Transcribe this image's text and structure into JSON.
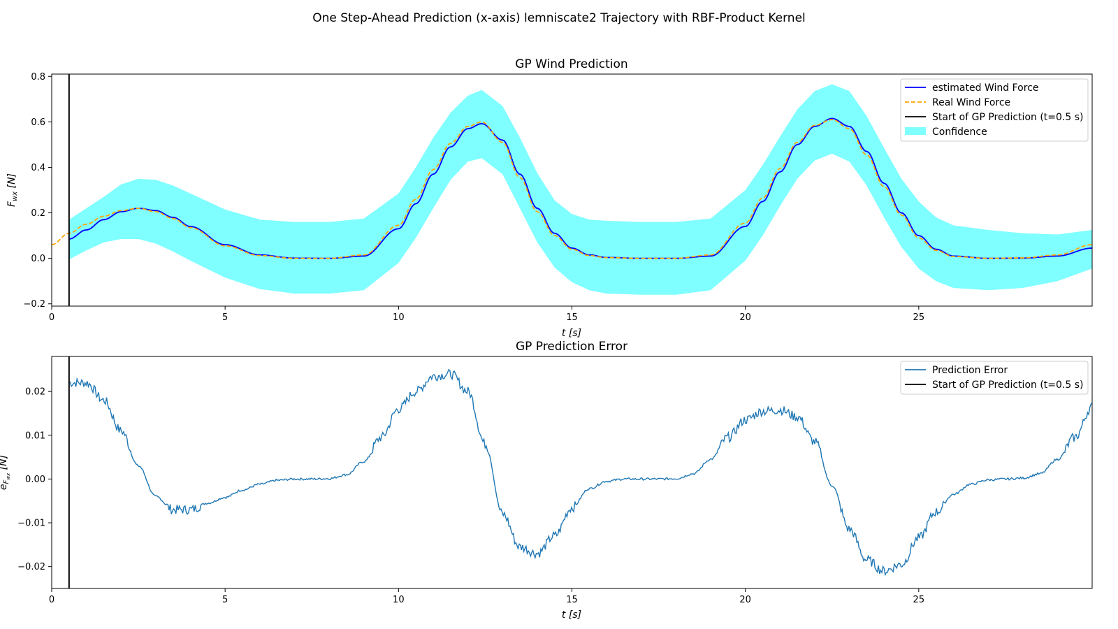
{
  "figure": {
    "title": "One Step-Ahead Prediction (x-axis) lemniscate2 Trajectory with RBF-Product Kernel"
  },
  "chart_data": [
    {
      "type": "line",
      "title": "GP Wind Prediction",
      "xlabel": "t [s]",
      "ylabel_main": "F",
      "ylabel_sub": "wx",
      "ylabel_unit": "[N]",
      "xlim": [
        0,
        30
      ],
      "ylim": [
        -0.21,
        0.81
      ],
      "xticks": [
        0,
        5,
        10,
        15,
        20,
        25
      ],
      "xtick_labels": [
        "0",
        "5",
        "10",
        "15",
        "20",
        "25"
      ],
      "yticks": [
        -0.2,
        0.0,
        0.2,
        0.4,
        0.6,
        0.8
      ],
      "ytick_labels": [
        "−0.2",
        "0.0",
        "0.2",
        "0.4",
        "0.6",
        "0.8"
      ],
      "grid": false,
      "legend_position": "top-right",
      "vline": {
        "x": 0.5,
        "color": "#000000"
      },
      "series": [
        {
          "name": "estimated Wind Force",
          "color": "#0000ff",
          "style": "solid",
          "x": [
            0.5,
            1,
            1.5,
            2,
            2.5,
            3,
            3.5,
            4,
            5,
            6,
            7,
            8,
            9,
            10,
            10.5,
            11,
            11.5,
            12,
            12.4,
            13,
            13.5,
            14,
            14.5,
            15,
            15.5,
            16,
            17,
            18,
            19,
            20,
            20.5,
            21,
            21.5,
            22,
            22.5,
            23,
            23.5,
            24,
            24.5,
            25,
            25.5,
            26,
            27,
            28,
            29,
            30
          ],
          "y": [
            0.085,
            0.125,
            0.17,
            0.205,
            0.22,
            0.21,
            0.18,
            0.14,
            0.06,
            0.015,
            0.001,
            0.0,
            0.01,
            0.13,
            0.24,
            0.37,
            0.49,
            0.57,
            0.592,
            0.52,
            0.37,
            0.22,
            0.11,
            0.045,
            0.015,
            0.004,
            0.0,
            0.0,
            0.01,
            0.14,
            0.25,
            0.38,
            0.5,
            0.58,
            0.615,
            0.58,
            0.47,
            0.33,
            0.2,
            0.1,
            0.04,
            0.01,
            0.0,
            0.001,
            0.01,
            0.045
          ]
        },
        {
          "name": "Real Wind Force",
          "color": "#ffa500",
          "style": "dashed",
          "x": [
            0,
            0.5,
            1,
            1.5,
            2,
            2.5,
            3,
            3.5,
            4,
            5,
            6,
            7,
            8,
            9,
            10,
            10.5,
            11,
            11.5,
            12,
            12.4,
            13,
            13.5,
            14,
            14.5,
            15,
            15.5,
            16,
            17,
            18,
            19,
            20,
            20.5,
            21,
            21.5,
            22,
            22.5,
            23,
            23.5,
            24,
            24.5,
            25,
            25.5,
            26,
            27,
            28,
            29,
            30
          ],
          "y": [
            0.06,
            0.11,
            0.15,
            0.185,
            0.21,
            0.22,
            0.205,
            0.175,
            0.135,
            0.055,
            0.012,
            0.0,
            0.0,
            0.015,
            0.145,
            0.26,
            0.39,
            0.505,
            0.58,
            0.6,
            0.51,
            0.355,
            0.205,
            0.1,
            0.04,
            0.012,
            0.003,
            0.0,
            0.0,
            0.015,
            0.155,
            0.265,
            0.395,
            0.51,
            0.585,
            0.61,
            0.57,
            0.455,
            0.315,
            0.19,
            0.09,
            0.035,
            0.008,
            0.0,
            0.002,
            0.015,
            0.06
          ]
        }
      ],
      "band": {
        "name": "Confidence",
        "color": "#00ffff",
        "opacity": 0.5,
        "x": [
          0.5,
          1,
          1.5,
          2,
          2.5,
          3,
          3.5,
          4,
          5,
          6,
          7,
          8,
          9,
          10,
          10.5,
          11,
          11.5,
          12,
          12.4,
          13,
          13.5,
          14,
          14.5,
          15,
          15.5,
          16,
          17,
          18,
          19,
          20,
          20.5,
          21,
          21.5,
          22,
          22.5,
          23,
          23.5,
          24,
          24.5,
          25,
          25.5,
          26,
          27,
          28,
          29,
          30
        ],
        "lower": [
          -0.005,
          0.035,
          0.07,
          0.085,
          0.085,
          0.065,
          0.03,
          -0.01,
          -0.085,
          -0.135,
          -0.155,
          -0.155,
          -0.14,
          -0.02,
          0.09,
          0.22,
          0.345,
          0.425,
          0.44,
          0.37,
          0.22,
          0.07,
          -0.04,
          -0.105,
          -0.14,
          -0.155,
          -0.16,
          -0.16,
          -0.14,
          -0.01,
          0.1,
          0.23,
          0.35,
          0.43,
          0.46,
          0.425,
          0.32,
          0.18,
          0.05,
          -0.045,
          -0.1,
          -0.13,
          -0.14,
          -0.13,
          -0.1,
          -0.045
        ],
        "upper": [
          0.17,
          0.22,
          0.27,
          0.325,
          0.35,
          0.345,
          0.32,
          0.285,
          0.215,
          0.17,
          0.16,
          0.16,
          0.175,
          0.285,
          0.4,
          0.53,
          0.64,
          0.715,
          0.74,
          0.67,
          0.53,
          0.375,
          0.255,
          0.195,
          0.17,
          0.165,
          0.16,
          0.16,
          0.175,
          0.3,
          0.41,
          0.535,
          0.655,
          0.735,
          0.765,
          0.735,
          0.625,
          0.485,
          0.35,
          0.25,
          0.18,
          0.145,
          0.125,
          0.11,
          0.105,
          0.125
        ]
      }
    },
    {
      "type": "line",
      "title": "GP Prediction Error",
      "xlabel": "t [s]",
      "ylabel_main": "e",
      "ylabel_sub": "F",
      "ylabel_subsub": "wx",
      "ylabel_unit": "[N]",
      "xlim": [
        0,
        30
      ],
      "ylim": [
        -0.025,
        0.028
      ],
      "xticks": [
        0,
        5,
        10,
        15,
        20,
        25
      ],
      "xtick_labels": [
        "0",
        "5",
        "10",
        "15",
        "20",
        "25"
      ],
      "yticks": [
        -0.02,
        -0.01,
        0.0,
        0.01,
        0.02
      ],
      "ytick_labels": [
        "−0.02",
        "−0.01",
        "0.00",
        "0.01",
        "0.02"
      ],
      "grid": false,
      "legend_position": "top-right",
      "vline": {
        "x": 0.5,
        "color": "#000000"
      },
      "series": [
        {
          "name": "Prediction Error",
          "color": "#1f77b4",
          "style": "solid",
          "x": [
            0.5,
            1,
            1.5,
            2,
            2.5,
            3,
            3.5,
            4,
            4.5,
            5,
            5.5,
            6,
            6.5,
            7,
            7.5,
            8,
            8.5,
            9,
            9.5,
            10,
            10.5,
            11,
            11.5,
            12,
            12.5,
            13,
            13.5,
            14,
            14.5,
            15,
            15.5,
            16,
            16.5,
            17,
            17.5,
            18,
            18.5,
            19,
            19.5,
            20,
            20.5,
            21,
            21.5,
            22,
            22.5,
            23,
            23.5,
            24,
            24.5,
            25,
            25.5,
            26,
            26.5,
            27,
            27.5,
            28,
            28.5,
            29,
            29.5,
            30
          ],
          "y": [
            0.022,
            0.022,
            0.018,
            0.011,
            0.003,
            -0.004,
            -0.007,
            -0.007,
            -0.0055,
            -0.0042,
            -0.0025,
            -0.0012,
            -0.0003,
            0.0,
            0.0,
            0.0001,
            0.001,
            0.004,
            0.0095,
            0.016,
            0.02,
            0.0235,
            0.024,
            0.02,
            0.008,
            -0.008,
            -0.0155,
            -0.017,
            -0.013,
            -0.0065,
            -0.0022,
            -0.0005,
            0.0,
            0.0,
            0.0,
            0.0001,
            0.0012,
            0.0045,
            0.0095,
            0.0135,
            0.0155,
            0.0158,
            0.0142,
            0.0085,
            -0.0015,
            -0.0115,
            -0.0185,
            -0.021,
            -0.0195,
            -0.0135,
            -0.0075,
            -0.0035,
            -0.0012,
            -0.0002,
            0.0,
            0.0002,
            0.0012,
            0.0045,
            0.0095,
            0.0165
          ]
        },
        {
          "name": "Start of GP Prediction (t=0.5 s)",
          "color": "#000000",
          "style": "solid",
          "role": "vline"
        }
      ]
    }
  ],
  "legends": {
    "top": {
      "estimated": "estimated Wind Force",
      "real": "Real Wind Force",
      "start": "Start of GP Prediction (t=0.5 s)",
      "confidence": "Confidence"
    },
    "bottom": {
      "error": "Prediction Error",
      "start": "Start of GP Prediction (t=0.5 s)"
    }
  }
}
